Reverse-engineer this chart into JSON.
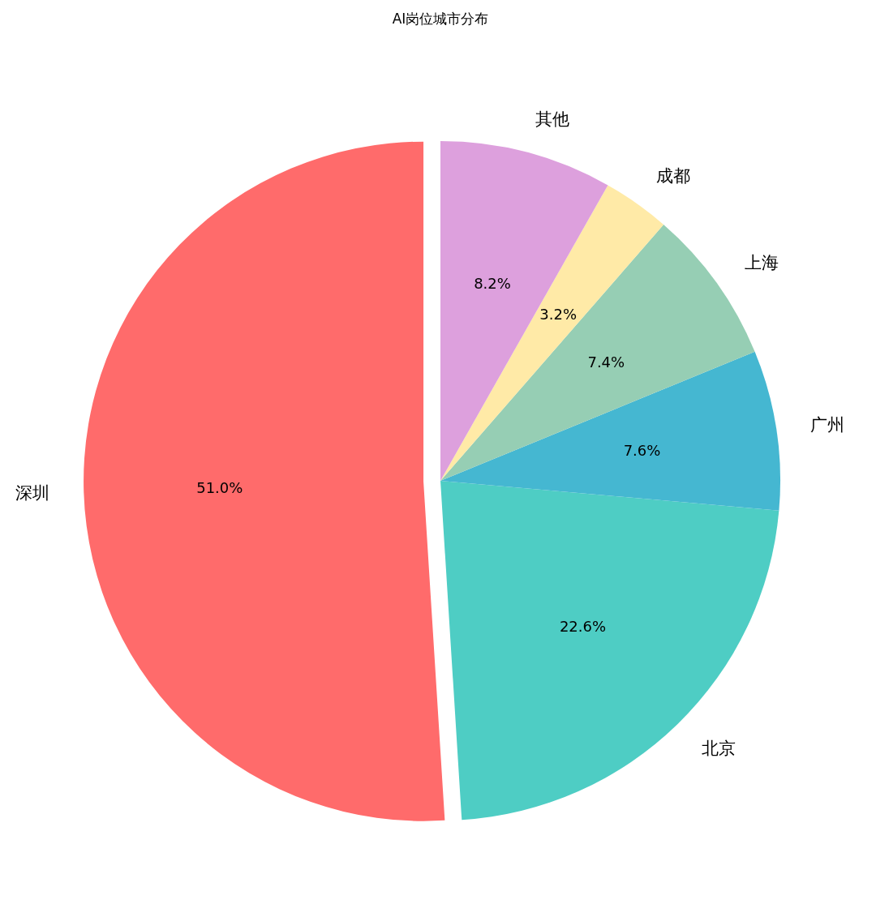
{
  "chart_data": {
    "type": "pie",
    "title": "AI岗位城市分布",
    "categories": [
      "深圳",
      "北京",
      "广州",
      "上海",
      "成都",
      "其他"
    ],
    "values": [
      51.0,
      22.6,
      7.6,
      7.4,
      3.2,
      8.2
    ],
    "colors": [
      "#ff6b6b",
      "#4ecdc4",
      "#45b7d1",
      "#96ceb4",
      "#ffeaa7",
      "#dda0dd"
    ],
    "value_labels": [
      "51.0%",
      "22.6%",
      "7.6%",
      "7.4%",
      "3.2%",
      "8.2%"
    ]
  }
}
